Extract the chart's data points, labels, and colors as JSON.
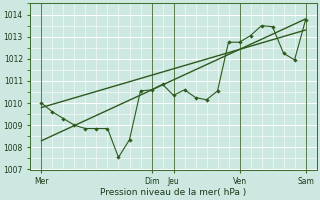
{
  "xlabel": "Pression niveau de la mer( hPa )",
  "bg_color": "#cce8e0",
  "grid_color": "#ffffff",
  "line_color": "#2d5a1e",
  "ylim": [
    1007,
    1014.5
  ],
  "yticks": [
    1007,
    1008,
    1009,
    1010,
    1011,
    1012,
    1013,
    1014
  ],
  "xlim": [
    0,
    26
  ],
  "day_labels": [
    "Mer",
    "Dim",
    "Jeu",
    "Ven",
    "Sam"
  ],
  "day_positions": [
    1,
    11,
    13,
    19,
    25
  ],
  "forecast_x": [
    1,
    2,
    3,
    4,
    5,
    6,
    7,
    8,
    9,
    10,
    11,
    12,
    13,
    14,
    15,
    16,
    17,
    18,
    19,
    20,
    21,
    22,
    23,
    24,
    25
  ],
  "forecast_y": [
    1010.0,
    1009.6,
    1009.3,
    1009.0,
    1008.85,
    1008.85,
    1008.85,
    1007.55,
    1008.35,
    1010.55,
    1010.6,
    1010.85,
    1010.35,
    1010.6,
    1010.25,
    1010.15,
    1010.55,
    1012.75,
    1012.75,
    1013.05,
    1013.5,
    1013.45,
    1012.25,
    1011.95,
    1013.75
  ],
  "trend_x": [
    1,
    25
  ],
  "trend_y": [
    1008.3,
    1013.8
  ],
  "trend2_x": [
    1,
    25
  ],
  "trend2_y": [
    1009.8,
    1013.3
  ]
}
